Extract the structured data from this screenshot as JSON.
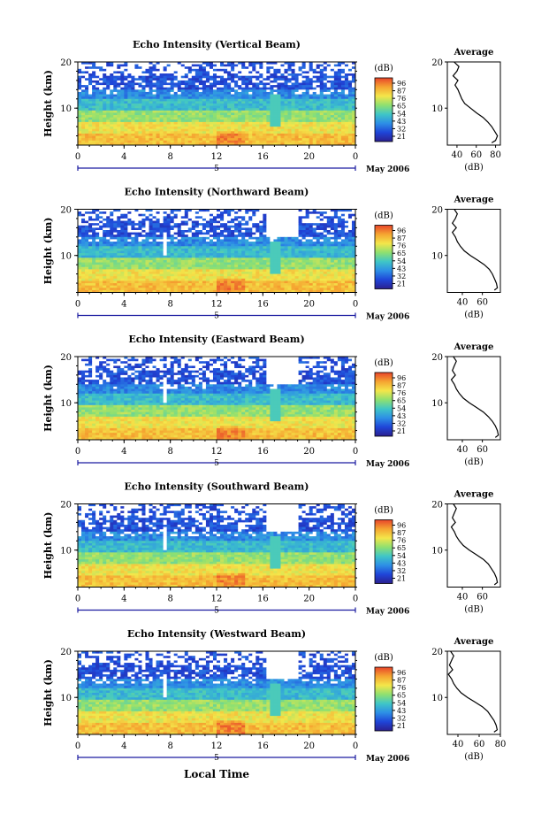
{
  "figure": {
    "x_axis_label": "Local Time",
    "date_label": "May 2006",
    "day_label": "5",
    "colorbar_unit": "(dB)",
    "colorbar_ticks": [
      "96",
      "87",
      "76",
      "65",
      "54",
      "43",
      "32",
      "21"
    ],
    "colors": {
      "scale": [
        "#2b1f8f",
        "#1f45d8",
        "#2d8fe6",
        "#3fc6c7",
        "#8fe070",
        "#f4e64a",
        "#f5a531",
        "#e8442a"
      ],
      "gap": "#ffffff",
      "axis": "#000000",
      "accent_blue": "#1a1aa0"
    }
  },
  "chart_data": [
    {
      "type": "heatmap",
      "title": "Echo Intensity (Vertical Beam)",
      "xlabel": "Local Time",
      "ylabel": "Height (km)",
      "x_ticks": [
        "0",
        "4",
        "8",
        "12",
        "16",
        "20",
        "0"
      ],
      "y_ticks": [
        "20",
        "10"
      ],
      "xlim": [
        0,
        24
      ],
      "ylim": [
        2,
        20
      ],
      "colorbar": {
        "label": "(dB)",
        "range": [
          21,
          96
        ]
      },
      "average_profile": {
        "title": "Average",
        "xlabel": "(dB)",
        "x_ticks": [
          "40",
          "60",
          "80"
        ],
        "xlim": [
          30,
          85
        ],
        "y_ticks": [
          "20",
          "10"
        ],
        "ylim": [
          2,
          20
        ],
        "height_km": [
          2.5,
          3,
          4,
          5,
          6,
          7,
          8,
          9,
          10,
          11,
          12,
          13,
          14,
          15,
          16,
          17,
          18,
          19,
          20
        ],
        "db": [
          76,
          80,
          82,
          79,
          76,
          72,
          67,
          60,
          54,
          48,
          45,
          43,
          41,
          38,
          41,
          36,
          40,
          42,
          37
        ]
      }
    },
    {
      "type": "heatmap",
      "title": "Echo Intensity (Northward Beam)",
      "xlabel": "Local Time",
      "ylabel": "Height (km)",
      "x_ticks": [
        "0",
        "4",
        "8",
        "12",
        "16",
        "20",
        "0"
      ],
      "y_ticks": [
        "20",
        "10"
      ],
      "xlim": [
        0,
        24
      ],
      "ylim": [
        2,
        20
      ],
      "colorbar": {
        "label": "(dB)",
        "range": [
          21,
          96
        ]
      },
      "average_profile": {
        "title": "Average",
        "xlabel": "(dB)",
        "x_ticks": [
          "40",
          "60"
        ],
        "xlim": [
          25,
          78
        ],
        "y_ticks": [
          "20",
          "10"
        ],
        "ylim": [
          2,
          20
        ],
        "height_km": [
          2.5,
          3,
          4,
          5,
          6,
          7,
          8,
          9,
          10,
          11,
          12,
          13,
          14,
          15,
          16,
          17,
          18,
          19,
          20
        ],
        "db": [
          72,
          75,
          74,
          72,
          70,
          67,
          62,
          55,
          48,
          42,
          38,
          35,
          33,
          30,
          34,
          30,
          33,
          35,
          32
        ]
      }
    },
    {
      "type": "heatmap",
      "title": "Echo Intensity (Eastward Beam)",
      "xlabel": "Local Time",
      "ylabel": "Height (km)",
      "x_ticks": [
        "0",
        "4",
        "8",
        "12",
        "16",
        "20",
        "0"
      ],
      "y_ticks": [
        "20",
        "10"
      ],
      "xlim": [
        0,
        24
      ],
      "ylim": [
        2,
        20
      ],
      "colorbar": {
        "label": "(dB)",
        "range": [
          21,
          96
        ]
      },
      "average_profile": {
        "title": "Average",
        "xlabel": "(dB)",
        "x_ticks": [
          "40",
          "60"
        ],
        "xlim": [
          25,
          78
        ],
        "y_ticks": [
          "20",
          "10"
        ],
        "ylim": [
          2,
          20
        ],
        "height_km": [
          2.5,
          3,
          4,
          5,
          6,
          7,
          8,
          9,
          10,
          11,
          12,
          13,
          14,
          15,
          16,
          17,
          18,
          19,
          20
        ],
        "db": [
          73,
          76,
          75,
          73,
          70,
          66,
          61,
          54,
          47,
          41,
          37,
          34,
          32,
          29,
          33,
          30,
          32,
          34,
          31
        ]
      }
    },
    {
      "type": "heatmap",
      "title": "Echo Intensity (Southward Beam)",
      "xlabel": "Local Time",
      "ylabel": "Height (km)",
      "x_ticks": [
        "0",
        "4",
        "8",
        "12",
        "16",
        "20",
        "0"
      ],
      "y_ticks": [
        "20",
        "10"
      ],
      "xlim": [
        0,
        24
      ],
      "ylim": [
        2,
        20
      ],
      "colorbar": {
        "label": "(dB)",
        "range": [
          21,
          96
        ]
      },
      "average_profile": {
        "title": "Average",
        "xlabel": "(dB)",
        "x_ticks": [
          "40",
          "60"
        ],
        "xlim": [
          25,
          78
        ],
        "y_ticks": [
          "20",
          "10"
        ],
        "ylim": [
          2,
          20
        ],
        "height_km": [
          2.5,
          3,
          4,
          5,
          6,
          7,
          8,
          9,
          10,
          11,
          12,
          13,
          14,
          15,
          16,
          17,
          18,
          19,
          20
        ],
        "db": [
          72,
          75,
          74,
          72,
          69,
          66,
          61,
          54,
          47,
          41,
          37,
          34,
          32,
          29,
          33,
          30,
          32,
          34,
          31
        ]
      }
    },
    {
      "type": "heatmap",
      "title": "Echo Intensity (Westward Beam)",
      "xlabel": "Local Time",
      "ylabel": "Height (km)",
      "x_ticks": [
        "0",
        "4",
        "8",
        "12",
        "16",
        "20",
        "0"
      ],
      "y_ticks": [
        "20",
        "10"
      ],
      "xlim": [
        0,
        24
      ],
      "ylim": [
        2,
        20
      ],
      "colorbar": {
        "label": "(dB)",
        "range": [
          21,
          96
        ]
      },
      "average_profile": {
        "title": "Average",
        "xlabel": "(dB)",
        "x_ticks": [
          "40",
          "60",
          "80"
        ],
        "xlim": [
          30,
          80
        ],
        "y_ticks": [
          "20",
          "10"
        ],
        "ylim": [
          2,
          20
        ],
        "height_km": [
          2.5,
          3,
          4,
          5,
          6,
          7,
          8,
          9,
          10,
          11,
          12,
          13,
          14,
          15,
          16,
          17,
          18,
          19,
          20
        ],
        "db": [
          74,
          77,
          76,
          74,
          71,
          68,
          63,
          56,
          49,
          43,
          39,
          36,
          34,
          31,
          35,
          32,
          34,
          36,
          33
        ]
      }
    }
  ]
}
